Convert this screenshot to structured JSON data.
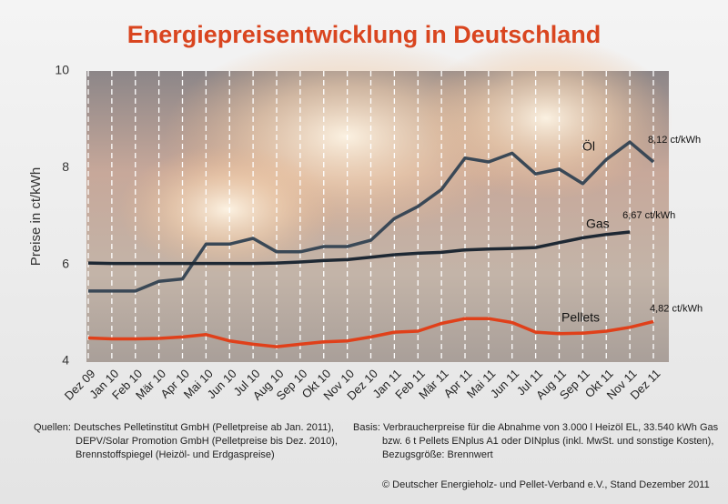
{
  "chart_data": {
    "type": "line",
    "title": "Energiepreisentwicklung in Deutschland",
    "y_label": "Preise in ct/kWh",
    "categories": [
      "Dez 09",
      "Jan 10",
      "Feb 10",
      "Mär 10",
      "Apr 10",
      "Mai 10",
      "Jun 10",
      "Jul 10",
      "Aug 10",
      "Sep 10",
      "Okt 10",
      "Nov 10",
      "Dez 10",
      "Jan 11",
      "Feb 11",
      "Mär 11",
      "Apr 11",
      "Mai 11",
      "Jun 11",
      "Jul 11",
      "Aug 11",
      "Sep 11",
      "Okt 11",
      "Nov 11",
      "Dez 11"
    ],
    "ylim": [
      4,
      10
    ],
    "yticks": [
      4,
      6,
      8,
      10
    ],
    "series": [
      {
        "name": "Öl",
        "color": "#3a4856",
        "values": [
          5.45,
          5.45,
          5.45,
          5.65,
          5.7,
          6.42,
          6.42,
          6.54,
          6.26,
          6.26,
          6.37,
          6.37,
          6.5,
          6.95,
          7.2,
          7.55,
          8.2,
          8.12,
          8.3,
          7.87,
          7.97,
          7.67,
          8.17,
          8.53,
          8.12
        ],
        "value_labels": [
          null,
          null,
          null,
          null,
          null,
          null,
          null,
          null,
          null,
          null,
          null,
          null,
          null,
          null,
          null,
          null,
          null,
          null,
          null,
          null,
          null,
          null,
          null,
          null,
          "8,12 ct/kWh"
        ]
      },
      {
        "name": "Gas",
        "color": "#1e2833",
        "values": [
          6.03,
          6.02,
          6.02,
          6.02,
          6.02,
          6.02,
          6.02,
          6.02,
          6.03,
          6.05,
          6.08,
          6.1,
          6.15,
          6.2,
          6.23,
          6.25,
          6.3,
          6.32,
          6.33,
          6.35,
          6.45,
          6.55,
          6.62,
          6.67,
          null
        ],
        "value_labels": [
          null,
          null,
          null,
          null,
          null,
          null,
          null,
          null,
          null,
          null,
          null,
          null,
          null,
          null,
          null,
          null,
          null,
          null,
          null,
          null,
          null,
          null,
          null,
          "6,67 ct/kWh",
          null
        ]
      },
      {
        "name": "Pellets",
        "color": "#e0401a",
        "values": [
          4.48,
          4.46,
          4.46,
          4.47,
          4.5,
          4.55,
          4.42,
          4.35,
          4.3,
          4.35,
          4.4,
          4.42,
          4.5,
          4.6,
          4.62,
          4.78,
          4.88,
          4.88,
          4.8,
          4.6,
          4.57,
          4.58,
          4.62,
          4.7,
          4.82
        ],
        "value_labels": [
          null,
          null,
          null,
          null,
          null,
          null,
          null,
          null,
          null,
          null,
          null,
          null,
          null,
          null,
          null,
          null,
          null,
          null,
          null,
          null,
          null,
          null,
          null,
          null,
          "4,82 ct/kWh"
        ]
      }
    ]
  },
  "footer": {
    "sources": [
      "Quellen: Deutsches Pelletinstitut GmbH (Pelletpreise ab Jan. 2011),",
      "DEPV/Solar Promotion GmbH (Pelletpreise bis Dez. 2010),",
      "Brennstoffspiegel (Heizöl- und Erdgaspreise)"
    ],
    "basis": [
      "Basis: Verbraucherpreise für die Abnahme von 3.000 l Heizöl EL, 33.540 kWh Gas",
      "bzw. 6 t Pellets ENplus A1 oder DINplus (inkl. MwSt. und sonstige Kosten),",
      "Bezugsgröße: Brennwert"
    ],
    "copyright": "© Deutscher Energieholz- und Pellet-Verband e.V., Stand Dezember 2011"
  }
}
